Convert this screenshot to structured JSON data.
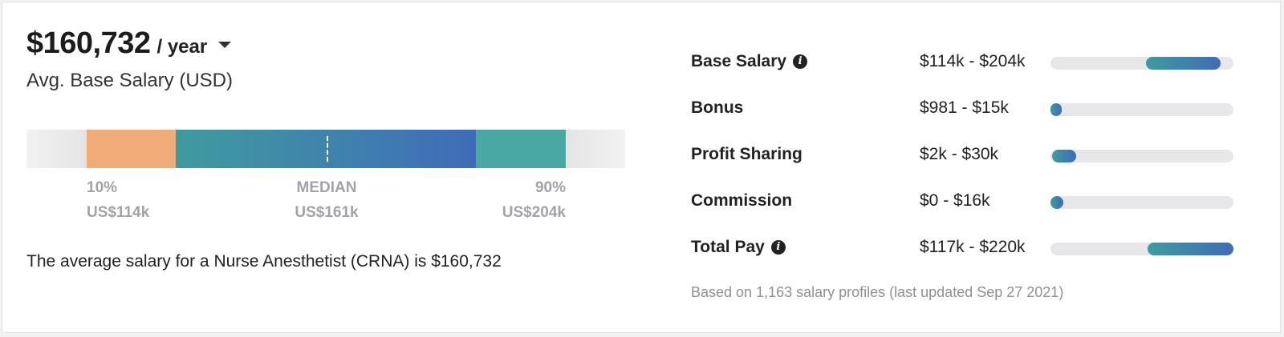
{
  "header": {
    "amount": "$160,732",
    "period": "/ year",
    "subtitle": "Avg. Base Salary (USD)"
  },
  "distribution": {
    "low": {
      "label": "10%",
      "value": "US$114k"
    },
    "median": {
      "label": "MEDIAN",
      "value": "US$161k"
    },
    "high": {
      "label": "90%",
      "value": "US$204k"
    },
    "colors": {
      "low": "#efab78",
      "mid_start": "#3f9b9f",
      "mid_end": "#3f6cb8",
      "high": "#4aa8a3"
    }
  },
  "summary": "The average salary for a Nurse Anesthetist (CRNA) is $160,732",
  "pay_breakdown": [
    {
      "name": "Base Salary",
      "info": true,
      "range": "$114k - $204k",
      "fill_start": 0.52,
      "fill_end": 0.93
    },
    {
      "name": "Bonus",
      "info": false,
      "range": "$981 - $15k",
      "fill_start": 0.0,
      "fill_end": 0.06
    },
    {
      "name": "Profit Sharing",
      "info": false,
      "range": "$2k - $30k",
      "fill_start": 0.01,
      "fill_end": 0.14
    },
    {
      "name": "Commission",
      "info": false,
      "range": "$0 - $16k",
      "fill_start": 0.0,
      "fill_end": 0.07
    },
    {
      "name": "Total Pay",
      "info": true,
      "range": "$117k - $220k",
      "fill_start": 0.53,
      "fill_end": 1.0
    }
  ],
  "footnote": "Based on 1,163 salary profiles (last updated Sep 27 2021)"
}
